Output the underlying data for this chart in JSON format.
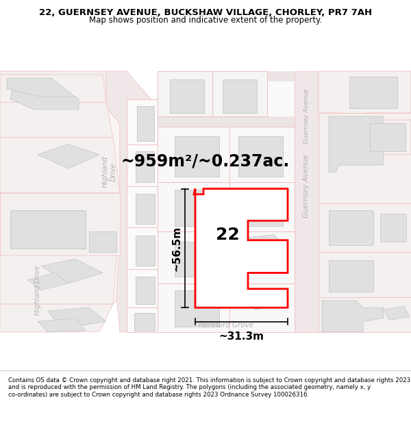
{
  "title": "22, GUERNSEY AVENUE, BUCKSHAW VILLAGE, CHORLEY, PR7 7AH",
  "subtitle": "Map shows position and indicative extent of the property.",
  "area_text": "~959m²/~0.237ac.",
  "width_label": "~31.3m",
  "height_label": "~56.5m",
  "number_label": "22",
  "footer_text": "Contains OS data © Crown copyright and database right 2021. This information is subject to Crown copyright and database rights 2023 and is reproduced with the permission of HM Land Registry. The polygons (including the associated geometry, namely x, y co-ordinates) are subject to Crown copyright and database rights 2023 Ordnance Survey 100026316.",
  "map_bg": "#f8f8f8",
  "plot_outline_color": "#ff0000",
  "dim_line_color": "#000000",
  "bg_color": "#ffffff",
  "road_fill": "#f5f0f0",
  "plot_fill": "#f0f0f0",
  "building_fill": "#e0e0e0",
  "building_edge": "#cccccc",
  "plot_edge_light": "#f0c0c0",
  "title_fontsize": 9.5,
  "subtitle_fontsize": 8.5,
  "area_fontsize": 17,
  "dim_fontsize": 11,
  "num_fontsize": 18,
  "street_label_color": "#b0b0b0"
}
